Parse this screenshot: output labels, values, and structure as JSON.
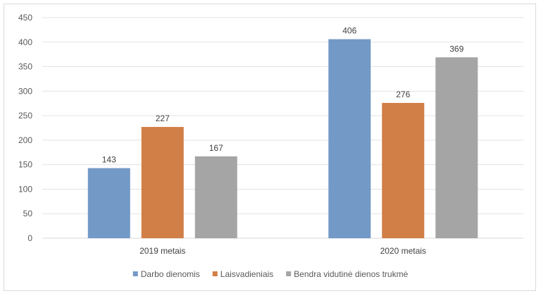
{
  "chart_data": {
    "type": "bar",
    "title": "",
    "xlabel": "",
    "ylabel": "",
    "categories": [
      "2019 metais",
      "2020 metais"
    ],
    "series": [
      {
        "name": "Darbo dienomis",
        "color": "#7399c6",
        "values": [
          143,
          406
        ]
      },
      {
        "name": "Laisvadieniais",
        "color": "#d17f47",
        "values": [
          227,
          276
        ]
      },
      {
        "name": "Bendra vidutinė dienos trukmė",
        "color": "#a5a5a5",
        "values": [
          167,
          369
        ]
      }
    ],
    "ylim": [
      0,
      450
    ],
    "yticks": [
      0,
      50,
      100,
      150,
      200,
      250,
      300,
      350,
      400,
      450
    ],
    "grid": true,
    "legend_position": "bottom",
    "data_labels": true
  }
}
